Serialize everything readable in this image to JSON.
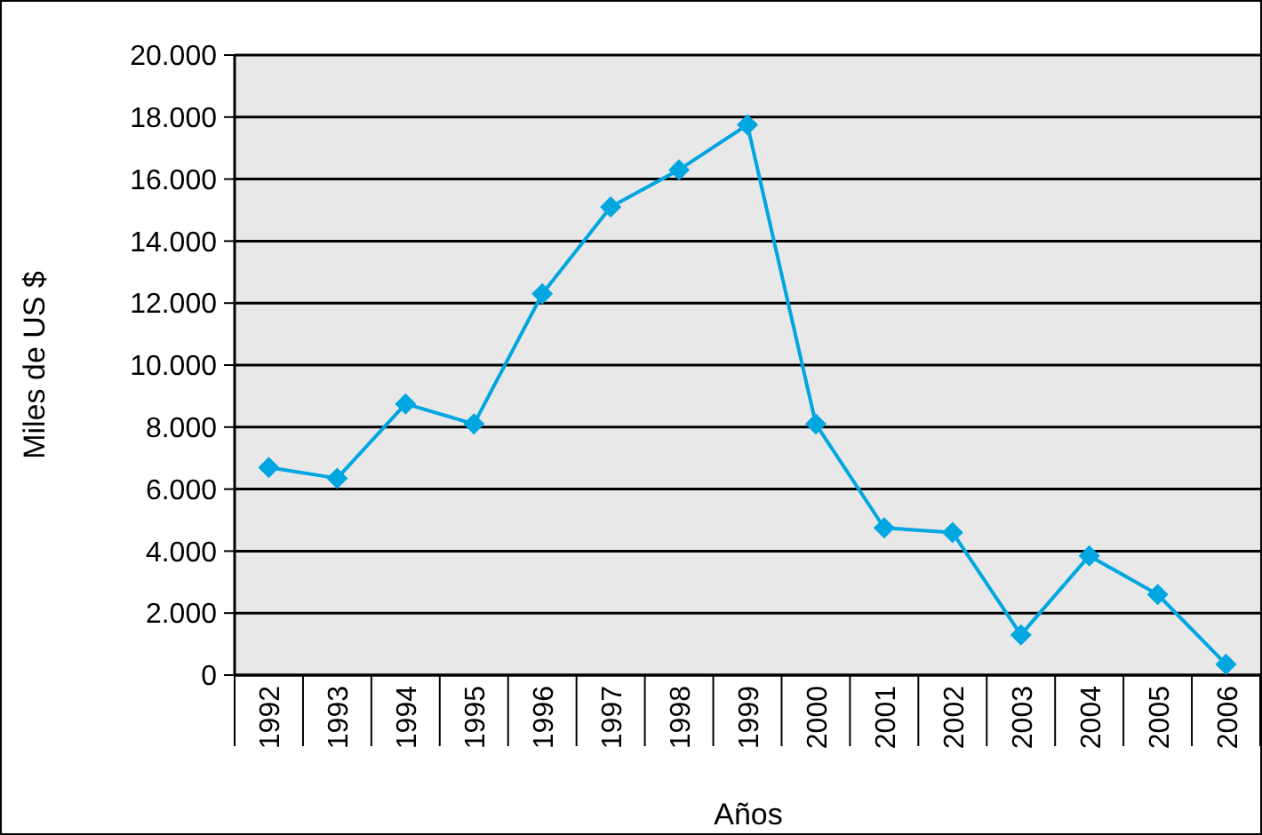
{
  "chart_data": {
    "type": "line",
    "xlabel": "Años",
    "ylabel": "Miles de US $",
    "categories": [
      "1992",
      "1993",
      "1994",
      "1995",
      "1996",
      "1997",
      "1998",
      "1999",
      "2000",
      "2001",
      "2002",
      "2003",
      "2004",
      "2005",
      "2006"
    ],
    "series": [
      {
        "color": "#00a6e0",
        "values": [
          6700,
          6350,
          8750,
          8100,
          12300,
          15100,
          16300,
          17750,
          8100,
          4750,
          4600,
          1300,
          3850,
          2600,
          350
        ]
      }
    ],
    "ylim": [
      0,
      20000
    ],
    "yticks": [
      0,
      {
        "value": 2000,
        "label": "2.000"
      },
      {
        "value": 4000,
        "label": "4.000"
      },
      {
        "value": 6000,
        "label": "6.000"
      },
      {
        "value": 8000,
        "label": "8.000"
      },
      {
        "value": 10000,
        "label": "10.000"
      },
      {
        "value": 12000,
        "label": "12.000"
      },
      {
        "value": 14000,
        "label": "14.000"
      },
      {
        "value": 16000,
        "label": "16.000"
      },
      {
        "value": 18000,
        "label": "18.000"
      },
      {
        "value": 20000,
        "label": "20.000"
      }
    ],
    "grid": "y",
    "marker": "diamond",
    "line_style": "solid"
  }
}
